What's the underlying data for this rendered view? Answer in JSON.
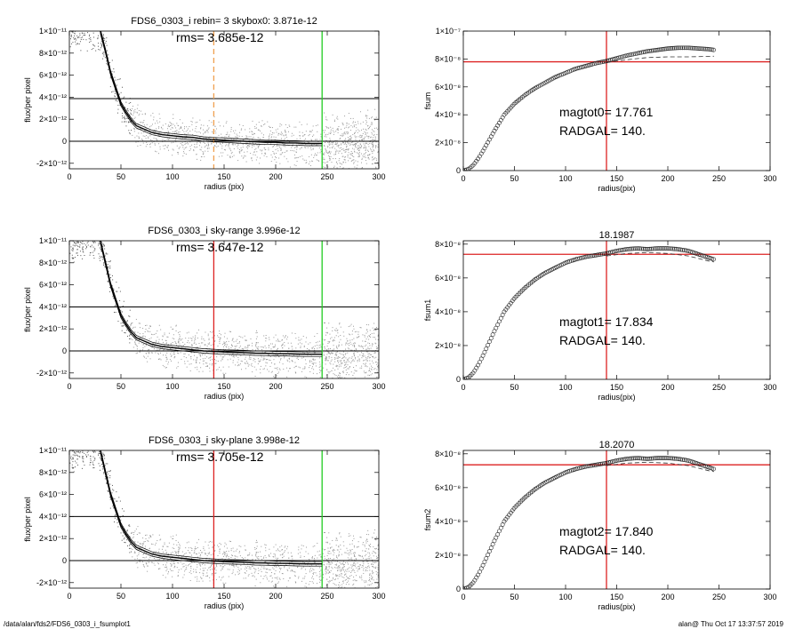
{
  "footer": {
    "left": "/data/alan/fds2/FDS6_0303_i_fsumplot1",
    "right": "alan@  Thu Oct 17 13:37:57 2019"
  },
  "chart_data": [
    {
      "type": "scatter",
      "panel": "profile-1",
      "title": "FDS6_0303_i rebin= 3    skybox0:  3.871e-12",
      "annotation": "rms= 3.685e-12",
      "xlabel": "radius (pix)",
      "ylabel": "flux/per pixel",
      "xlim": [
        0,
        300
      ],
      "ylim": [
        -2.5e-12,
        1e-11
      ],
      "xticks": [
        0,
        50,
        100,
        150,
        200,
        250,
        300
      ],
      "ytick_labels": [
        "-2×10⁻¹²",
        "0",
        "2×10⁻¹²",
        "4×10⁻¹²",
        "6×10⁻¹²",
        "8×10⁻¹²",
        "1×10⁻¹¹"
      ],
      "yticks": [
        -2e-12,
        0,
        2e-12,
        4e-12,
        6e-12,
        8e-12,
        1e-11
      ],
      "hlines": [
        {
          "y": 3.871e-12,
          "color": "#000000"
        },
        {
          "y": 0,
          "color": "#000000"
        }
      ],
      "vlines": [
        {
          "x": 140,
          "color": "#f0a050",
          "style": "dashed"
        },
        {
          "x": 245,
          "color": "#22cc22",
          "style": "solid"
        }
      ],
      "profile": {
        "x": [
          30,
          35,
          40,
          45,
          50,
          55,
          60,
          65,
          70,
          75,
          80,
          90,
          100,
          110,
          120,
          130,
          140,
          150,
          160,
          170,
          180,
          190,
          200,
          210,
          220,
          230,
          240,
          245
        ],
        "y": [
          1e-11,
          8.2e-12,
          6.2e-12,
          4.8e-12,
          3.4e-12,
          2.6e-12,
          1.9e-12,
          1.4e-12,
          1.2e-12,
          1e-12,
          8e-13,
          6e-13,
          5e-13,
          4e-13,
          3.5e-13,
          2e-13,
          1.5e-13,
          1e-13,
          5e-14,
          0.0,
          -5e-14,
          -1e-13,
          -1e-13,
          -1.5e-13,
          -1.5e-13,
          -2e-13,
          -2e-13,
          -2e-13
        ]
      }
    },
    {
      "type": "line",
      "panel": "growth-1",
      "title": "",
      "annotation_lines": [
        "magtot0=  17.761",
        "RADGAL=    140."
      ],
      "xlabel": "radius(pix)",
      "ylabel": "fsum",
      "xlim": [
        0,
        300
      ],
      "ylim": [
        0,
        1e-07
      ],
      "xticks": [
        0,
        50,
        100,
        150,
        200,
        250,
        300
      ],
      "yticks": [
        0,
        2e-08,
        4e-08,
        6e-08,
        8e-08,
        1e-07
      ],
      "ytick_labels": [
        "0",
        "2×10⁻⁸",
        "4×10⁻⁸",
        "6×10⁻⁸",
        "8×10⁻⁸",
        "1×10⁻⁷"
      ],
      "hline": {
        "y": 7.8e-08,
        "color": "#dd2222"
      },
      "vline": {
        "x": 140,
        "color": "#dd2222"
      },
      "curve": {
        "x": [
          0,
          5,
          10,
          15,
          20,
          30,
          40,
          50,
          60,
          70,
          80,
          90,
          100,
          110,
          120,
          130,
          140,
          150,
          160,
          170,
          180,
          190,
          200,
          210,
          220,
          230,
          240,
          245
        ],
        "y": [
          0,
          1e-09,
          4e-09,
          9e-09,
          1.5e-08,
          2.8e-08,
          4e-08,
          4.8e-08,
          5.4e-08,
          5.9e-08,
          6.3e-08,
          6.7e-08,
          7e-08,
          7.3e-08,
          7.5e-08,
          7.7e-08,
          7.85e-08,
          8.05e-08,
          8.25e-08,
          8.4e-08,
          8.55e-08,
          8.65e-08,
          8.75e-08,
          8.8e-08,
          8.8e-08,
          8.75e-08,
          8.7e-08,
          8.65e-08
        ]
      },
      "dashed": {
        "x": [
          140,
          160,
          180,
          200,
          220,
          245
        ],
        "y": [
          7.75e-08,
          7.95e-08,
          8.1e-08,
          8.15e-08,
          8.15e-08,
          8.2e-08
        ]
      }
    },
    {
      "type": "scatter",
      "panel": "profile-2",
      "title": "FDS6_0303_i sky-range  3.996e-12",
      "annotation": "rms= 3.647e-12",
      "xlabel": "radius (pix)",
      "ylabel": "flux/per pixel",
      "xlim": [
        0,
        300
      ],
      "ylim": [
        -2.5e-12,
        1e-11
      ],
      "xticks": [
        0,
        50,
        100,
        150,
        200,
        250,
        300
      ],
      "yticks": [
        -2e-12,
        0,
        2e-12,
        4e-12,
        6e-12,
        8e-12,
        1e-11
      ],
      "ytick_labels": [
        "-2×10⁻¹²",
        "0",
        "2×10⁻¹²",
        "4×10⁻¹²",
        "6×10⁻¹²",
        "8×10⁻¹²",
        "1×10⁻¹¹"
      ],
      "hlines": [
        {
          "y": 3.996e-12,
          "color": "#000000"
        },
        {
          "y": 0,
          "color": "#000000"
        }
      ],
      "vlines": [
        {
          "x": 140,
          "color": "#dd2222",
          "style": "solid"
        },
        {
          "x": 245,
          "color": "#22cc22",
          "style": "solid"
        }
      ],
      "profile": {
        "x": [
          30,
          35,
          40,
          45,
          50,
          55,
          60,
          65,
          70,
          75,
          80,
          90,
          100,
          110,
          120,
          130,
          140,
          150,
          160,
          170,
          180,
          190,
          200,
          210,
          220,
          230,
          240,
          245
        ],
        "y": [
          1e-11,
          8e-12,
          6e-12,
          4.6e-12,
          3.2e-12,
          2.4e-12,
          1.7e-12,
          1.2e-12,
          1e-12,
          8e-13,
          6e-13,
          4e-13,
          3e-13,
          2e-13,
          1e-13,
          0.0,
          -5e-14,
          -1e-13,
          -1.2e-13,
          -1.5e-13,
          -2e-13,
          -2.2e-13,
          -2.5e-13,
          -2.5e-13,
          -2.8e-13,
          -3e-13,
          -3e-13,
          -3e-13
        ]
      }
    },
    {
      "type": "line",
      "panel": "growth-2",
      "title": "18.1987",
      "annotation_lines": [
        "magtot1=  17.834",
        "RADGAL=    140."
      ],
      "xlabel": "radius(pix)",
      "ylabel": "fsum1",
      "xlim": [
        0,
        300
      ],
      "ylim": [
        0,
        8.2e-08
      ],
      "xticks": [
        0,
        50,
        100,
        150,
        200,
        250,
        300
      ],
      "yticks": [
        0,
        2e-08,
        4e-08,
        6e-08,
        8e-08
      ],
      "ytick_labels": [
        "0",
        "2×10⁻⁸",
        "4×10⁻⁸",
        "6×10⁻⁸",
        "8×10⁻⁸"
      ],
      "hline": {
        "y": 7.4e-08,
        "color": "#dd2222"
      },
      "vline": {
        "x": 140,
        "color": "#dd2222"
      },
      "curve": {
        "x": [
          0,
          5,
          10,
          15,
          20,
          30,
          40,
          50,
          60,
          70,
          80,
          90,
          100,
          110,
          120,
          130,
          140,
          150,
          160,
          170,
          180,
          190,
          200,
          210,
          220,
          230,
          240,
          245
        ],
        "y": [
          0,
          1e-09,
          4e-09,
          9e-09,
          1.5e-08,
          2.8e-08,
          4e-08,
          4.8e-08,
          5.4e-08,
          5.9e-08,
          6.3e-08,
          6.6e-08,
          6.9e-08,
          7.1e-08,
          7.25e-08,
          7.35e-08,
          7.45e-08,
          7.6e-08,
          7.7e-08,
          7.75e-08,
          7.7e-08,
          7.75e-08,
          7.75e-08,
          7.7e-08,
          7.6e-08,
          7.4e-08,
          7.2e-08,
          7.1e-08
        ]
      },
      "dashed": {
        "x": [
          140,
          160,
          180,
          200,
          220,
          240,
          245
        ],
        "y": [
          7.3e-08,
          7.45e-08,
          7.5e-08,
          7.45e-08,
          7.3e-08,
          7e-08,
          6.95e-08
        ]
      }
    },
    {
      "type": "scatter",
      "panel": "profile-3",
      "title": "FDS6_0303_i sky-plane  3.998e-12",
      "annotation": "rms= 3.705e-12",
      "xlabel": "radius (pix)",
      "ylabel": "flux/per pixel",
      "xlim": [
        0,
        300
      ],
      "ylim": [
        -2.5e-12,
        1e-11
      ],
      "xticks": [
        0,
        50,
        100,
        150,
        200,
        250,
        300
      ],
      "yticks": [
        -2e-12,
        0,
        2e-12,
        4e-12,
        6e-12,
        8e-12,
        1e-11
      ],
      "ytick_labels": [
        "-2×10⁻¹²",
        "0",
        "2×10⁻¹²",
        "4×10⁻¹²",
        "6×10⁻¹²",
        "8×10⁻¹²",
        "1×10⁻¹¹"
      ],
      "hlines": [
        {
          "y": 3.998e-12,
          "color": "#000000"
        },
        {
          "y": 0,
          "color": "#000000"
        }
      ],
      "vlines": [
        {
          "x": 140,
          "color": "#dd2222",
          "style": "solid"
        },
        {
          "x": 245,
          "color": "#22cc22",
          "style": "solid"
        }
      ],
      "profile": {
        "x": [
          30,
          35,
          40,
          45,
          50,
          55,
          60,
          65,
          70,
          75,
          80,
          90,
          100,
          110,
          120,
          130,
          140,
          150,
          160,
          170,
          180,
          190,
          200,
          210,
          220,
          230,
          240,
          245
        ],
        "y": [
          1e-11,
          8e-12,
          6e-12,
          4.6e-12,
          3.2e-12,
          2.4e-12,
          1.7e-12,
          1.2e-12,
          1e-12,
          8e-13,
          6e-13,
          4e-13,
          3e-13,
          2e-13,
          1e-13,
          0.0,
          -5e-14,
          -1e-13,
          -1.2e-13,
          -1.5e-13,
          -2e-13,
          -2.2e-13,
          -2.5e-13,
          -2.5e-13,
          -2.8e-13,
          -3e-13,
          -3e-13,
          -3e-13
        ]
      }
    },
    {
      "type": "line",
      "panel": "growth-3",
      "title": "18.2070",
      "annotation_lines": [
        "magtot2=  17.840",
        "RADGAL=    140."
      ],
      "xlabel": "radius(pix)",
      "ylabel": "fsum2",
      "xlim": [
        0,
        300
      ],
      "ylim": [
        0,
        8.2e-08
      ],
      "xticks": [
        0,
        50,
        100,
        150,
        200,
        250,
        300
      ],
      "yticks": [
        0,
        2e-08,
        4e-08,
        6e-08,
        8e-08
      ],
      "ytick_labels": [
        "0",
        "2×10⁻⁸",
        "4×10⁻⁸",
        "6×10⁻⁸",
        "8×10⁻⁸"
      ],
      "hline": {
        "y": 7.35e-08,
        "color": "#dd2222"
      },
      "vline": {
        "x": 140,
        "color": "#dd2222"
      },
      "curve": {
        "x": [
          0,
          5,
          10,
          15,
          20,
          30,
          40,
          50,
          60,
          70,
          80,
          90,
          100,
          110,
          120,
          130,
          140,
          150,
          160,
          170,
          180,
          190,
          200,
          210,
          220,
          230,
          240,
          245
        ],
        "y": [
          0,
          1e-09,
          4e-09,
          9e-09,
          1.5e-08,
          2.8e-08,
          4e-08,
          4.8e-08,
          5.4e-08,
          5.9e-08,
          6.3e-08,
          6.6e-08,
          6.9e-08,
          7.1e-08,
          7.25e-08,
          7.35e-08,
          7.45e-08,
          7.6e-08,
          7.7e-08,
          7.75e-08,
          7.7e-08,
          7.75e-08,
          7.75e-08,
          7.7e-08,
          7.6e-08,
          7.4e-08,
          7.2e-08,
          7.1e-08
        ]
      },
      "dashed": {
        "x": [
          140,
          160,
          180,
          200,
          220,
          240,
          245
        ],
        "y": [
          7.3e-08,
          7.45e-08,
          7.5e-08,
          7.45e-08,
          7.3e-08,
          7e-08,
          6.95e-08
        ]
      }
    }
  ]
}
